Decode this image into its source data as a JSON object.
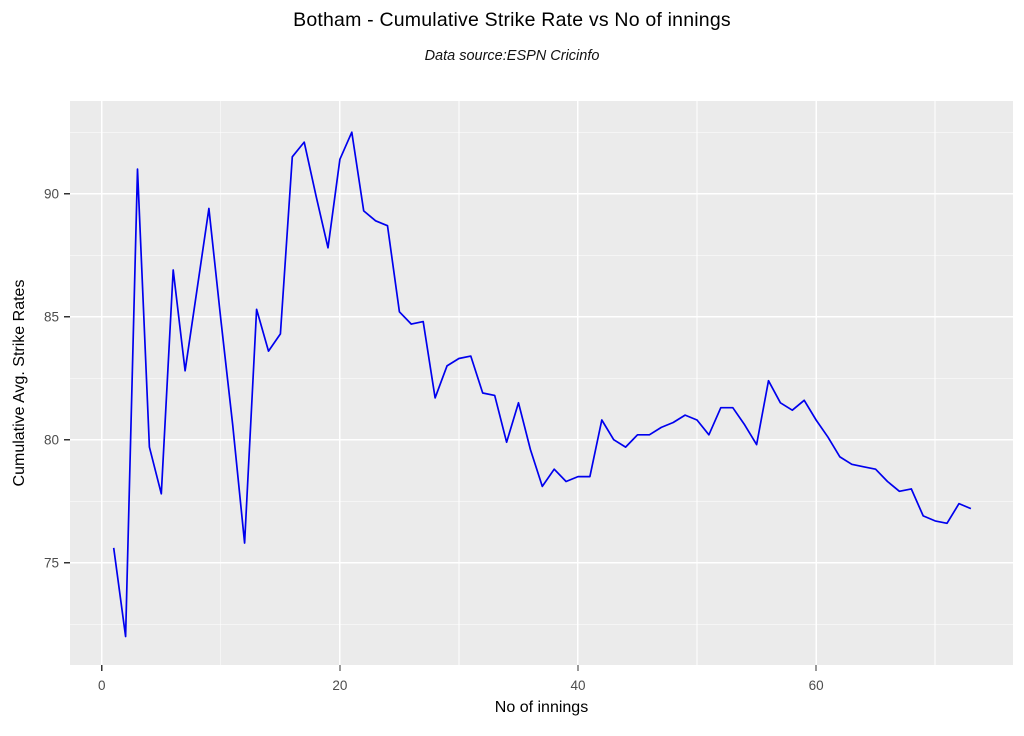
{
  "chart_data": {
    "type": "line",
    "title": "Botham - Cumulative Strike Rate vs No of innings",
    "subtitle": "Data source:ESPN Cricinfo",
    "xlabel": "No of innings",
    "ylabel": "Cumulative Avg. Strike Rates",
    "x": [
      1,
      2,
      3,
      4,
      5,
      6,
      7,
      8,
      9,
      10,
      11,
      12,
      13,
      14,
      15,
      16,
      17,
      18,
      19,
      20,
      21,
      22,
      23,
      24,
      25,
      26,
      27,
      28,
      29,
      30,
      31,
      32,
      33,
      34,
      35,
      36,
      37,
      38,
      39,
      40,
      41,
      42,
      43,
      44,
      45,
      46,
      47,
      48,
      49,
      50,
      51,
      52,
      53,
      54,
      55,
      56,
      57,
      58,
      59,
      60,
      61,
      62,
      63,
      64,
      65,
      66,
      67,
      68,
      69,
      70,
      71,
      72,
      73
    ],
    "series": [
      {
        "name": "Cumulative Avg. Strike Rate",
        "values": [
          75.6,
          72.0,
          91.0,
          79.7,
          77.8,
          86.9,
          82.8,
          86.1,
          89.4,
          84.9,
          80.6,
          75.8,
          85.3,
          83.6,
          84.3,
          91.5,
          92.1,
          89.9,
          87.8,
          91.4,
          92.5,
          89.3,
          88.9,
          88.7,
          85.2,
          84.7,
          84.8,
          81.7,
          83.0,
          83.3,
          83.4,
          81.9,
          81.8,
          79.9,
          81.5,
          79.6,
          78.1,
          78.8,
          78.3,
          78.5,
          78.5,
          80.8,
          80.0,
          79.7,
          80.2,
          80.2,
          80.5,
          80.7,
          81.0,
          80.8,
          80.2,
          81.3,
          81.3,
          80.6,
          79.8,
          82.4,
          81.5,
          81.2,
          81.6,
          80.8,
          80.1,
          79.3,
          79.0,
          78.9,
          78.8,
          78.3,
          77.9,
          78.0,
          76.9,
          76.7,
          76.6,
          77.4,
          77.2
        ]
      }
    ],
    "x_range": [
      -2.67,
      76.54
    ],
    "y_range": [
      70.84,
      93.77
    ],
    "x_ticks": [
      0,
      20,
      40,
      60
    ],
    "x_minor_ticks": [
      10,
      30,
      50,
      70
    ],
    "y_ticks": [
      75,
      80,
      85,
      90
    ],
    "y_minor_ticks": [
      72.5,
      77.5,
      82.5,
      87.5,
      92.5
    ],
    "grid": true,
    "legend": "none",
    "line_color": "#0000EE",
    "panel_bg": "#EBEBEB",
    "grid_color": "#FFFFFF",
    "tick_color": "#333333",
    "tick_label_color": "#4D4D4D",
    "text_color": "#000000"
  }
}
